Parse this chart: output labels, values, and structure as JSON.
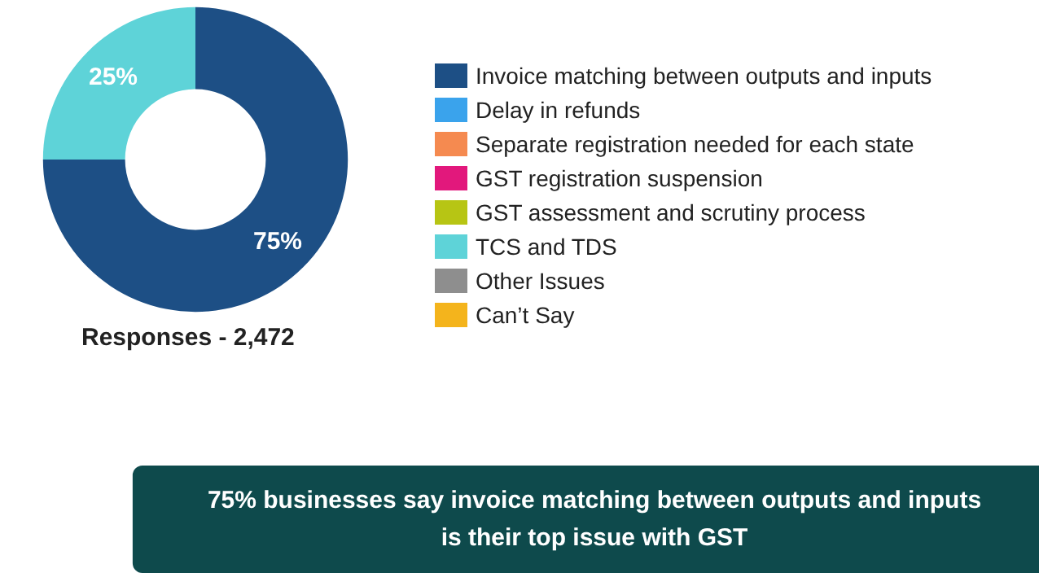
{
  "chart_data": {
    "type": "donut",
    "title": "75% businesses say invoice matching between outputs and inputs\nis their top issue with GST",
    "categories": [
      "Invoice matching between outputs and inputs",
      "Delay in refunds",
      "Separate registration needed for each state",
      "GST registration suspension",
      "GST assessment and scrutiny process",
      "TCS and TDS",
      "Other Issues",
      "Can’t Say"
    ],
    "values": [
      75,
      0,
      0,
      0,
      0,
      25,
      0,
      0
    ],
    "colors": [
      "#1d4f85",
      "#3aa3ec",
      "#f58a50",
      "#e2187c",
      "#b7c514",
      "#5ed3d8",
      "#8e8e8e",
      "#f4b41c"
    ],
    "value_labels": [
      "75%",
      null,
      null,
      null,
      null,
      "25%",
      null,
      null
    ],
    "legend": "right",
    "annotations": [
      "Responses - 2,472"
    ]
  }
}
